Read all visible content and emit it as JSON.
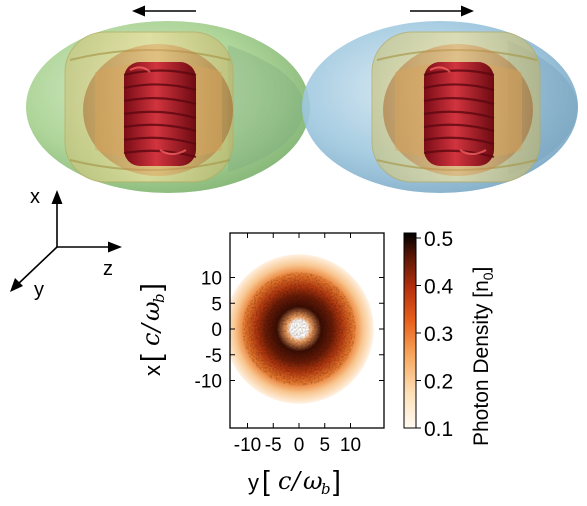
{
  "panels": {
    "left_arrow_direction": "left",
    "right_arrow_direction": "right",
    "left_outer_color": "#9fce8a",
    "right_outer_color": "#8fbcd6",
    "middle_shell_color": "#e8d98a",
    "inner_shell_color": "#c9874a",
    "core_color": "#b2172b"
  },
  "axes3d": {
    "x_label": "x",
    "y_label": "y",
    "z_label": "z"
  },
  "chart_data": {
    "type": "heatmap",
    "title": "",
    "xlabel_var": "y",
    "ylabel_var": "x",
    "unit_c": "c",
    "unit_slash": "/",
    "unit_omega": "ω",
    "unit_sub": "b",
    "x_ticks": [
      "-10",
      "-5",
      "0",
      "5",
      "10"
    ],
    "x_tick_values": [
      -10,
      -5,
      0,
      5,
      10
    ],
    "y_ticks": [
      "10",
      "5",
      "0",
      "-5",
      "-10"
    ],
    "y_tick_values": [
      10,
      5,
      0,
      -5,
      -10
    ],
    "xlim": [
      -15,
      15
    ],
    "ylim": [
      -15,
      15
    ],
    "colorbar": {
      "label_main": "Photon Density [n",
      "label_sub": "0",
      "label_end": "]",
      "ticks": [
        "0.5",
        "0.4",
        "0.3",
        "0.2",
        "0.1"
      ],
      "tick_values": [
        0.5,
        0.4,
        0.3,
        0.2,
        0.1
      ],
      "min": 0.1,
      "max": 0.5,
      "colors": [
        "#fffaf2",
        "#fde0b8",
        "#f7a45a",
        "#e8601c",
        "#b5300d",
        "#5a1606",
        "#000000"
      ]
    },
    "ring": {
      "inner_hole_radius": 1.5,
      "peak_radius": 4,
      "outer_radius": 10,
      "peak_density": 0.5,
      "hole_density": 0.1
    }
  }
}
